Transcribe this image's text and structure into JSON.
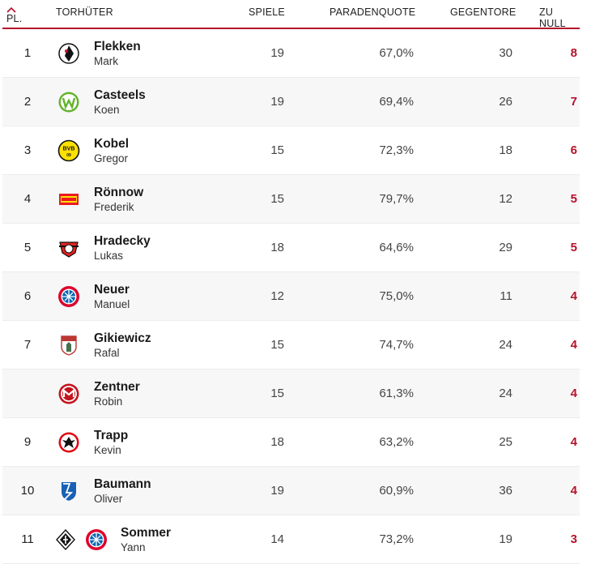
{
  "header": {
    "pl": "PL.",
    "torhueter": "TORHÜTER",
    "spiele": "SPIELE",
    "paradenquote": "PARADENQUOTE",
    "gegentore": "GEGENTORE",
    "zu_null": "ZU NULL"
  },
  "colors": {
    "accent": "#b5132b"
  },
  "rows": [
    {
      "pl": "1",
      "last": "Flekken",
      "first": "Mark",
      "spiele": "19",
      "quote": "67,0%",
      "gegentore": "30",
      "zu_null": "8",
      "club": "freiburg-logo"
    },
    {
      "pl": "2",
      "last": "Casteels",
      "first": "Koen",
      "spiele": "19",
      "quote": "69,4%",
      "gegentore": "26",
      "zu_null": "7",
      "club": "wolfsburg-logo"
    },
    {
      "pl": "3",
      "last": "Kobel",
      "first": "Gregor",
      "spiele": "15",
      "quote": "72,3%",
      "gegentore": "18",
      "zu_null": "6",
      "club": "dortmund-logo"
    },
    {
      "pl": "4",
      "last": "Rönnow",
      "first": "Frederik",
      "spiele": "15",
      "quote": "79,7%",
      "gegentore": "12",
      "zu_null": "5",
      "club": "union-berlin-logo"
    },
    {
      "pl": "5",
      "last": "Hradecky",
      "first": "Lukas",
      "spiele": "18",
      "quote": "64,6%",
      "gegentore": "29",
      "zu_null": "5",
      "club": "leverkusen-logo"
    },
    {
      "pl": "6",
      "last": "Neuer",
      "first": "Manuel",
      "spiele": "12",
      "quote": "75,0%",
      "gegentore": "11",
      "zu_null": "4",
      "club": "bayern-logo"
    },
    {
      "pl": "7",
      "last": "Gikiewicz",
      "first": "Rafal",
      "spiele": "15",
      "quote": "74,7%",
      "gegentore": "24",
      "zu_null": "4",
      "club": "augsburg-logo"
    },
    {
      "pl": "",
      "last": "Zentner",
      "first": "Robin",
      "spiele": "15",
      "quote": "61,3%",
      "gegentore": "24",
      "zu_null": "4",
      "club": "mainz-logo"
    },
    {
      "pl": "9",
      "last": "Trapp",
      "first": "Kevin",
      "spiele": "18",
      "quote": "63,2%",
      "gegentore": "25",
      "zu_null": "4",
      "club": "frankfurt-logo"
    },
    {
      "pl": "10",
      "last": "Baumann",
      "first": "Oliver",
      "spiele": "19",
      "quote": "60,9%",
      "gegentore": "36",
      "zu_null": "4",
      "club": "hoffenheim-logo"
    },
    {
      "pl": "11",
      "last": "Sommer",
      "first": "Yann",
      "spiele": "14",
      "quote": "73,2%",
      "gegentore": "19",
      "zu_null": "3",
      "club": "gladbach-logo",
      "club2": "bayern-logo"
    }
  ]
}
